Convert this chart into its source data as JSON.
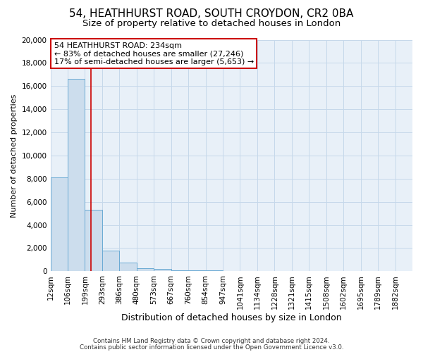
{
  "title": "54, HEATHHURST ROAD, SOUTH CROYDON, CR2 0BA",
  "subtitle": "Size of property relative to detached houses in London",
  "xlabel": "Distribution of detached houses by size in London",
  "ylabel": "Number of detached properties",
  "bar_labels": [
    "12sqm",
    "106sqm",
    "199sqm",
    "293sqm",
    "386sqm",
    "480sqm",
    "573sqm",
    "667sqm",
    "760sqm",
    "854sqm",
    "947sqm",
    "1041sqm",
    "1134sqm",
    "1228sqm",
    "1321sqm",
    "1415sqm",
    "1508sqm",
    "1602sqm",
    "1695sqm",
    "1789sqm",
    "1882sqm"
  ],
  "bar_heights": [
    8100,
    16600,
    5300,
    1800,
    750,
    270,
    190,
    100,
    80,
    60,
    0,
    0,
    0,
    0,
    0,
    0,
    0,
    0,
    0,
    0,
    0
  ],
  "bar_color": "#ccdded",
  "bar_edge_color": "#6aaad4",
  "property_line_x": 2.35,
  "property_line_color": "#cc0000",
  "annotation_line1": "54 HEATHHURST ROAD: 234sqm",
  "annotation_line2": "← 83% of detached houses are smaller (27,246)",
  "annotation_line3": "17% of semi-detached houses are larger (5,653) →",
  "ylim": [
    0,
    20000
  ],
  "yticks": [
    0,
    2000,
    4000,
    6000,
    8000,
    10000,
    12000,
    14000,
    16000,
    18000,
    20000
  ],
  "grid_color": "#c5d8ea",
  "background_color": "#e8f0f8",
  "footer_line1": "Contains HM Land Registry data © Crown copyright and database right 2024.",
  "footer_line2": "Contains public sector information licensed under the Open Government Licence v3.0.",
  "title_fontsize": 11,
  "subtitle_fontsize": 9.5,
  "xlabel_fontsize": 9,
  "ylabel_fontsize": 8,
  "tick_fontsize": 7.5,
  "ann_fontsize": 8
}
